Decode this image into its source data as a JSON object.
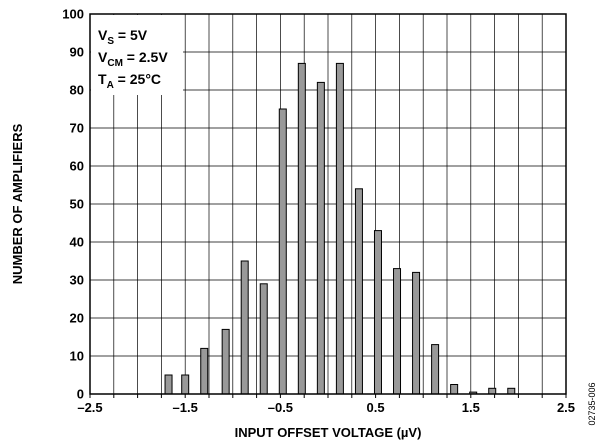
{
  "chart_data": {
    "type": "bar",
    "xlabel": "INPUT OFFSET VOLTAGE (µV)",
    "ylabel": "NUMBER OF AMPLIFIERS",
    "xlim": [
      -2.5,
      2.5
    ],
    "ylim": [
      0,
      100
    ],
    "grid": true,
    "x_ticks": [
      -2.5,
      -2.25,
      -2,
      -1.75,
      -1.5,
      -1.25,
      -1,
      -0.75,
      -0.5,
      -0.25,
      0,
      0.25,
      0.5,
      0.75,
      1,
      1.25,
      1.5,
      1.75,
      2,
      2.25,
      2.5
    ],
    "x_tick_labels": [
      "–2.5",
      "–1.5",
      "–0.5",
      "0.5",
      "1.5",
      "2.5"
    ],
    "x_tick_label_values": [
      -2.5,
      -1.5,
      -0.5,
      0.5,
      1.5,
      2.5
    ],
    "y_ticks": [
      0,
      10,
      20,
      30,
      40,
      50,
      60,
      70,
      80,
      90,
      100
    ],
    "y_tick_labels": [
      "0",
      "10",
      "20",
      "30",
      "40",
      "50",
      "60",
      "70",
      "80",
      "90",
      "100"
    ],
    "bar_color": "#999999",
    "bars": [
      {
        "x": -1.675,
        "value": 5
      },
      {
        "x": -1.5,
        "value": 5
      },
      {
        "x": -1.3,
        "value": 12
      },
      {
        "x": -1.075,
        "value": 17
      },
      {
        "x": -0.875,
        "value": 35
      },
      {
        "x": -0.675,
        "value": 29
      },
      {
        "x": -0.475,
        "value": 75
      },
      {
        "x": -0.275,
        "value": 87
      },
      {
        "x": -0.075,
        "value": 82
      },
      {
        "x": 0.125,
        "value": 87
      },
      {
        "x": 0.325,
        "value": 54
      },
      {
        "x": 0.525,
        "value": 43
      },
      {
        "x": 0.725,
        "value": 33
      },
      {
        "x": 0.925,
        "value": 32
      },
      {
        "x": 1.125,
        "value": 13
      },
      {
        "x": 1.325,
        "value": 2.5
      },
      {
        "x": 1.525,
        "value": 0.5
      },
      {
        "x": 1.725,
        "value": 1.5
      },
      {
        "x": 1.925,
        "value": 1.5
      }
    ],
    "annotation_box": {
      "lines": [
        {
          "main": "V",
          "sub": "S",
          "rest": " = 5V"
        },
        {
          "main": "V",
          "sub": "CM",
          "rest": " = 2.5V"
        },
        {
          "main": "T",
          "sub": "A",
          "rest": " = 25°C"
        }
      ]
    },
    "document_id": "02735-006"
  }
}
